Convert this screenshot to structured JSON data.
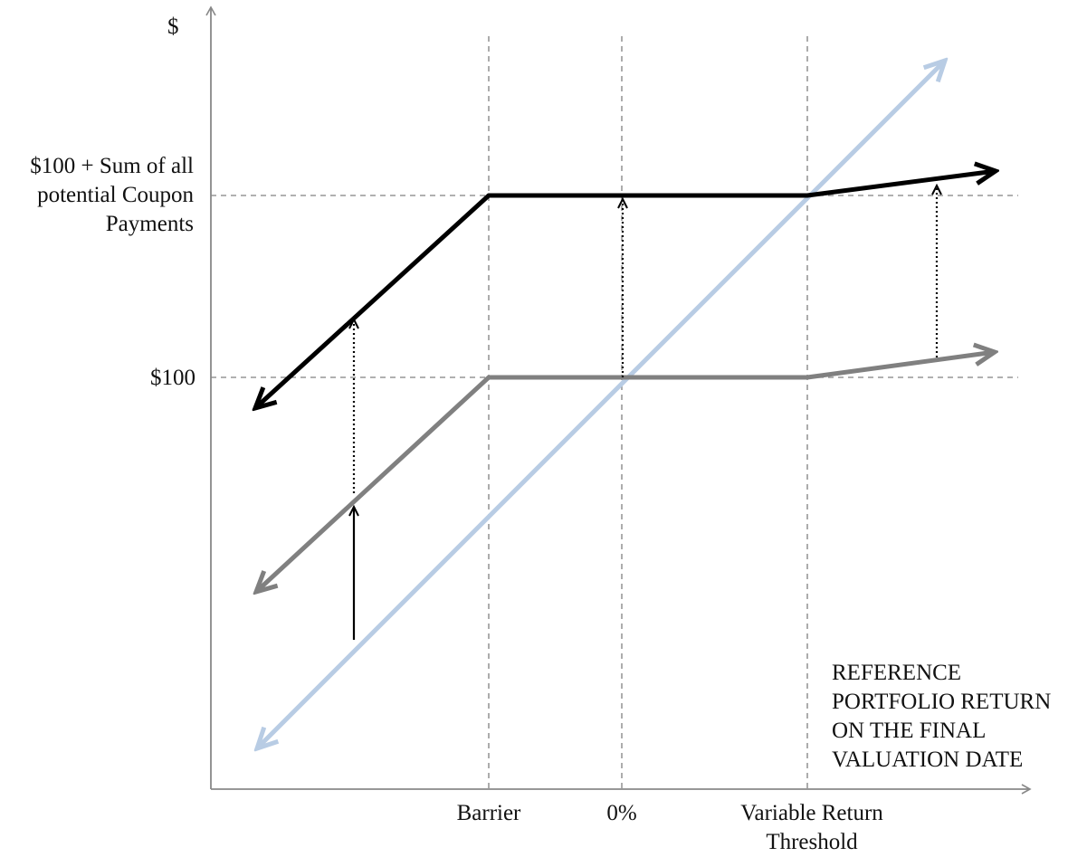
{
  "chart_data": {
    "type": "line",
    "title": "",
    "ylabel": "$",
    "xlabel": "REFERENCE\nPORTFOLIO RETURN\nON THE FINAL\nVALUATION DATE",
    "x_tick_labels": [
      "Barrier",
      "0%",
      "Variable Return\nThreshold"
    ],
    "y_tick_labels": [
      "$100 + Sum of all\npotential Coupon\nPayments",
      "$100"
    ],
    "grid": "dashed reference lines at labeled ticks",
    "legend": "none",
    "series": [
      {
        "style": "black",
        "points": [
          [
            "below Barrier",
            "below $100"
          ],
          [
            "Barrier",
            "$100 + Sum of all potential Coupon Payments"
          ],
          [
            "Variable Return Threshold",
            "$100 + Sum of all potential Coupon Payments"
          ],
          [
            "beyond",
            "rising"
          ]
        ]
      },
      {
        "style": "gray",
        "points": [
          [
            "below Barrier",
            "below $100"
          ],
          [
            "Barrier",
            "$100"
          ],
          [
            "Variable Return Threshold",
            "$100"
          ],
          [
            "beyond",
            "rising"
          ]
        ]
      },
      {
        "style": "light-blue",
        "points": [
          [
            "lowest",
            "lowest"
          ],
          [
            "0%",
            "$100"
          ],
          [
            "Variable Return Threshold",
            "$100 + Sum of all potential Coupon Payments"
          ],
          [
            "highest",
            "highest"
          ]
        ]
      }
    ],
    "annotations": [
      "solid up arrow below Barrier",
      "dotted up arrows from gray line to black line"
    ]
  },
  "colors": {
    "axis": "#888888",
    "black_series": "#000000",
    "gray_series": "#808080",
    "blue_series": "#b8cce4",
    "guide": "#808080"
  }
}
